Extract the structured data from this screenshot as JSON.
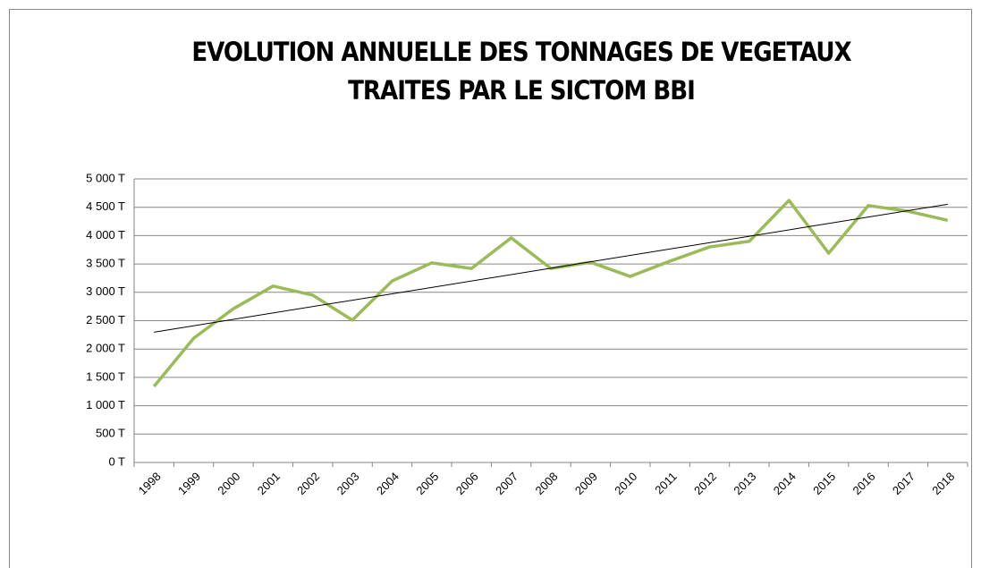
{
  "chart_data": {
    "type": "line",
    "title": [
      "EVOLUTION ANNUELLE DES TONNAGES DE VEGETAUX",
      "TRAITES PAR LE SICTOM BBI"
    ],
    "categories": [
      "1998",
      "1999",
      "2000",
      "2001",
      "2002",
      "2003",
      "2004",
      "2005",
      "2006",
      "2007",
      "2008",
      "2009",
      "2010",
      "2011",
      "2012",
      "2013",
      "2014",
      "2015",
      "2016",
      "2017",
      "2018"
    ],
    "series": [
      {
        "color": "#9bbb59",
        "values": [
          1340,
          2190,
          2710,
          3110,
          2950,
          2510,
          3200,
          3520,
          3420,
          3960,
          3420,
          3530,
          3280,
          3550,
          3800,
          3900,
          4620,
          3690,
          4530,
          4430,
          4270
        ]
      }
    ],
    "trendline": {
      "type": "linear",
      "color": "#000000"
    },
    "ylim": [
      0,
      5000
    ],
    "yticks": [
      {
        "value": 0,
        "label": "0 T"
      },
      {
        "value": 500,
        "label": "500 T"
      },
      {
        "value": 1000,
        "label": "1 000 T"
      },
      {
        "value": 1500,
        "label": "1 500 T"
      },
      {
        "value": 2000,
        "label": "2 000 T"
      },
      {
        "value": 2500,
        "label": "2 500 T"
      },
      {
        "value": 3000,
        "label": "3 000 T"
      },
      {
        "value": 3500,
        "label": "3 500 T"
      },
      {
        "value": 4000,
        "label": "4 000 T"
      },
      {
        "value": 4500,
        "label": "4 500 T"
      },
      {
        "value": 5000,
        "label": "5 000 T"
      }
    ],
    "grid": true
  }
}
